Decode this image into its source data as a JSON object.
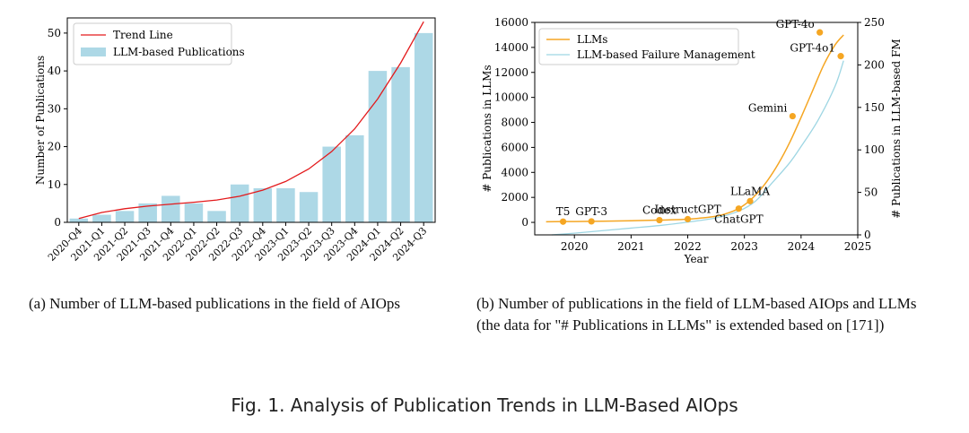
{
  "captions": {
    "a": "(a)  Number of LLM-based publications in the field of AIOps",
    "b": "(b)  Number of publications in the field of LLM-based AIOps and LLMs (the data for \"# Publications in LLMs\" is extended based on [171])",
    "figure": "Fig. 1.  Analysis of Publication Trends in LLM-Based AIOps"
  },
  "colors": {
    "bar": "#add8e6",
    "trend": "#e31a1c",
    "llms": "#f5a623",
    "fm": "#9ed6e3",
    "marker": "#f5a623"
  },
  "chart_data": [
    {
      "type": "bar",
      "ylabel": "Number of Publications",
      "xlabel": "",
      "ylim": [
        0,
        54
      ],
      "yticks": [
        0,
        10,
        20,
        30,
        40,
        50
      ],
      "grid": false,
      "legend_position": "top-left",
      "categories": [
        "2020-Q4",
        "2021-Q1",
        "2021-Q2",
        "2021-Q3",
        "2021-Q4",
        "2022-Q1",
        "2022-Q2",
        "2022-Q3",
        "2022-Q4",
        "2023-Q1",
        "2023-Q2",
        "2023-Q3",
        "2023-Q4",
        "2024-Q1",
        "2024-Q2",
        "2024-Q3"
      ],
      "series": [
        {
          "name": "LLM-based Publications",
          "kind": "bar",
          "values": [
            1,
            2,
            3,
            5,
            7,
            5,
            3,
            10,
            9,
            9,
            8,
            20,
            23,
            40,
            41,
            50
          ]
        },
        {
          "name": "Trend Line",
          "kind": "line",
          "values": [
            1,
            2.6,
            3.6,
            4.3,
            4.8,
            5.3,
            5.9,
            6.9,
            8.5,
            10.8,
            14.1,
            18.7,
            24.7,
            32.6,
            42.1,
            53
          ]
        }
      ]
    },
    {
      "type": "line",
      "xlabel": "Year",
      "ylabel": "# Publications in LLMs",
      "y2label": "# Publications in LLM-based FM",
      "xlim": [
        2019.3,
        2025
      ],
      "ylim": [
        -1000,
        16000
      ],
      "y2lim": [
        0,
        250
      ],
      "xticks": [
        2020,
        2021,
        2022,
        2023,
        2024,
        2025
      ],
      "yticks": [
        0,
        2000,
        4000,
        6000,
        8000,
        10000,
        12000,
        14000,
        16000
      ],
      "y2ticks": [
        0,
        50,
        100,
        150,
        200,
        250
      ],
      "grid": false,
      "legend_position": "top-left",
      "series": [
        {
          "name": "LLMs",
          "axis": "left",
          "x": [
            2019.5,
            2020.0,
            2020.5,
            2021.0,
            2021.5,
            2022.0,
            2022.5,
            2022.8,
            2023.0,
            2023.2,
            2023.4,
            2023.6,
            2023.8,
            2024.0,
            2024.2,
            2024.4,
            2024.6,
            2024.75
          ],
          "y": [
            50,
            70,
            90,
            130,
            180,
            260,
            500,
            900,
            1400,
            2200,
            3300,
            4700,
            6400,
            8400,
            10500,
            12600,
            14200,
            15000
          ]
        },
        {
          "name": "LLM-based Failure Management",
          "axis": "right",
          "x": [
            2019.6,
            2020.0,
            2020.5,
            2021.0,
            2021.5,
            2022.0,
            2022.5,
            2022.9,
            2023.2,
            2023.5,
            2023.8,
            2024.0,
            2024.3,
            2024.6,
            2024.75
          ],
          "y": [
            0,
            2,
            5,
            8,
            11,
            15,
            20,
            28,
            40,
            62,
            85,
            104,
            135,
            175,
            205
          ]
        }
      ],
      "annotations": [
        {
          "label": "T5",
          "x": 2019.8,
          "y": 60,
          "pos": "above"
        },
        {
          "label": "GPT-3",
          "x": 2020.3,
          "y": 80,
          "pos": "above"
        },
        {
          "label": "Codex",
          "x": 2021.5,
          "y": 180,
          "pos": "above"
        },
        {
          "label": "InstructGPT",
          "x": 2022.0,
          "y": 260,
          "pos": "above"
        },
        {
          "label": "ChatGPT",
          "x": 2022.9,
          "y": 1100,
          "pos": "below"
        },
        {
          "label": "LLaMA",
          "x": 2023.1,
          "y": 1700,
          "pos": "above"
        },
        {
          "label": "Gemini",
          "x": 2023.85,
          "y": 8500,
          "pos": "left"
        },
        {
          "label": "GPT-4o",
          "x": 2024.33,
          "y": 15200,
          "pos": "left"
        },
        {
          "label": "GPT-4o1",
          "x": 2024.7,
          "y": 13300,
          "pos": "left"
        }
      ]
    }
  ]
}
